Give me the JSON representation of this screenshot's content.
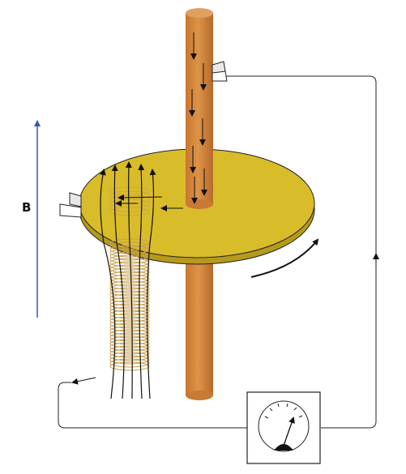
{
  "labels": {
    "field": "B"
  },
  "colors": {
    "disk_top": "#d9bc2a",
    "disk_edge": "#b59a1c",
    "axle": "#d4843a",
    "axle_dark": "#b86a28",
    "coil": "#c8a050",
    "field_arrow": "#3a56a8",
    "wire": "#222222",
    "background": "#ffffff"
  },
  "icons": [
    "field-arrow-icon",
    "rotation-arrow-icon",
    "galvanometer-icon",
    "brush-contact-icon",
    "current-arrow-icon"
  ]
}
